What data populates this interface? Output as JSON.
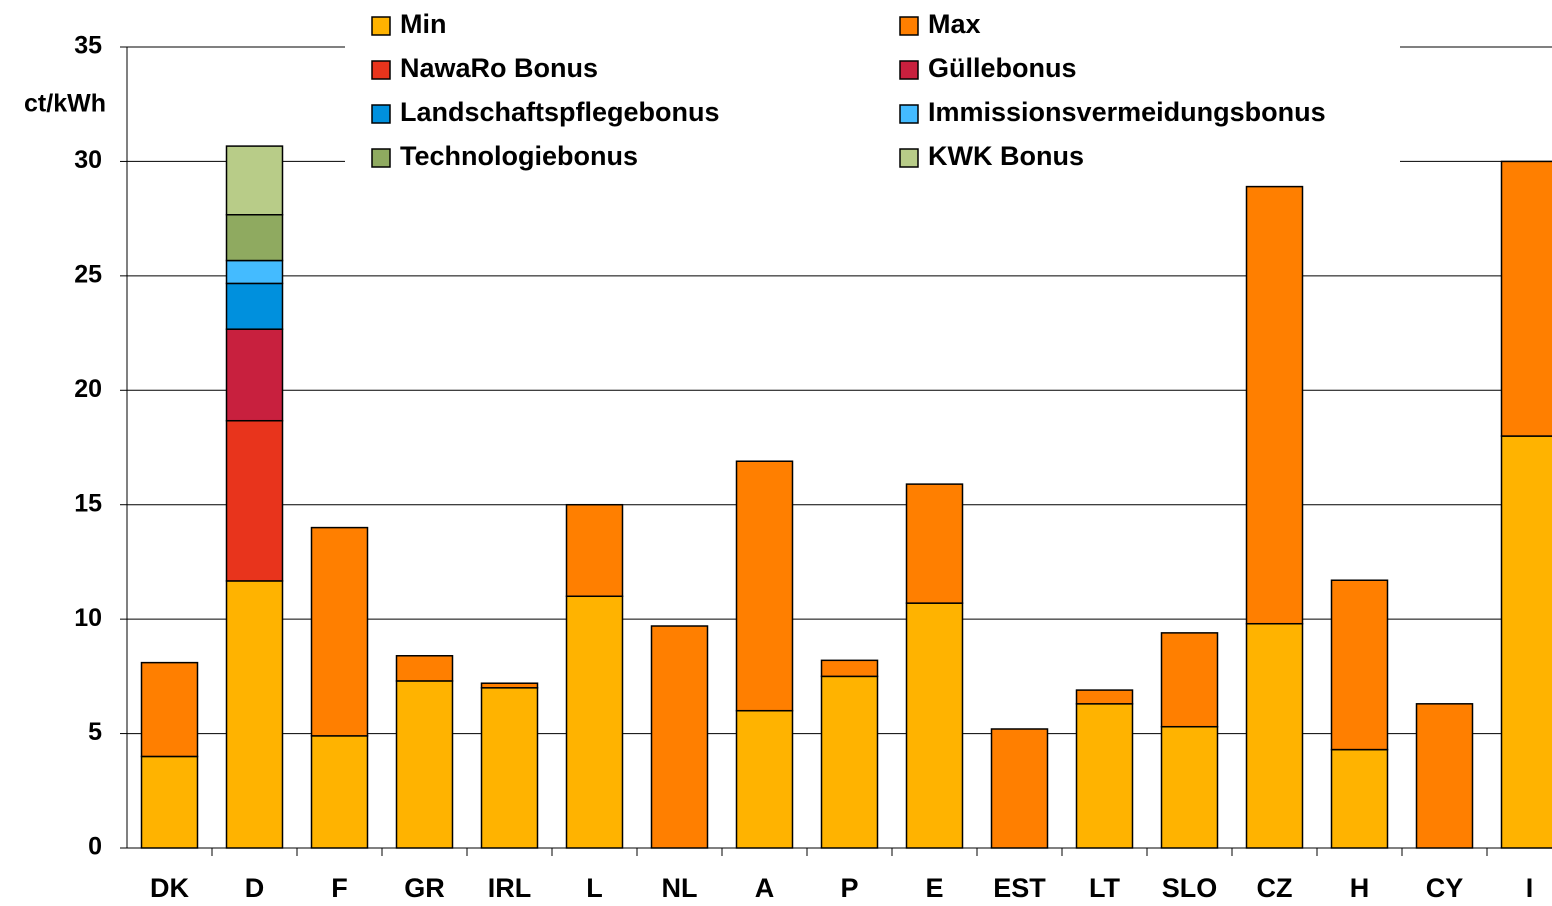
{
  "chart_data": {
    "type": "stacked-bar",
    "y_label": "ct/kWh",
    "categories": [
      "DK",
      "D",
      "F",
      "GR",
      "IRL",
      "L",
      "NL",
      "A",
      "P",
      "E",
      "EST",
      "LT",
      "SLO",
      "CZ",
      "H",
      "CY",
      "I"
    ],
    "series": [
      {
        "name": "Min",
        "color": "#FFB300",
        "values": [
          4.0,
          11.67,
          4.9,
          7.3,
          7.0,
          11.0,
          null,
          6.0,
          7.5,
          10.7,
          null,
          6.3,
          5.3,
          9.8,
          4.3,
          null,
          18.0
        ]
      },
      {
        "name": "Max",
        "color": "#FF7F00",
        "values": [
          4.1,
          null,
          9.1,
          1.1,
          0.2,
          4.0,
          9.7,
          10.9,
          0.7,
          5.2,
          5.2,
          0.6,
          4.1,
          19.1,
          7.4,
          6.3,
          12.0
        ]
      },
      {
        "name": "NawaRo Bonus",
        "color": "#E8341C",
        "values": [
          null,
          7.0,
          null,
          null,
          null,
          null,
          null,
          null,
          null,
          null,
          null,
          null,
          null,
          null,
          null,
          null,
          null
        ]
      },
      {
        "name": "Güllebonus",
        "color": "#C8203E",
        "values": [
          null,
          4.0,
          null,
          null,
          null,
          null,
          null,
          null,
          null,
          null,
          null,
          null,
          null,
          null,
          null,
          null,
          null
        ]
      },
      {
        "name": "Landschaftspflegebonus",
        "color": "#0090DD",
        "values": [
          null,
          2.0,
          null,
          null,
          null,
          null,
          null,
          null,
          null,
          null,
          null,
          null,
          null,
          null,
          null,
          null,
          null
        ]
      },
      {
        "name": "Immissionsvermeidungsbonus",
        "color": "#44BBFF",
        "values": [
          null,
          1.0,
          null,
          null,
          null,
          null,
          null,
          null,
          null,
          null,
          null,
          null,
          null,
          null,
          null,
          null,
          null
        ]
      },
      {
        "name": "Technologiebonus",
        "color": "#8FAA60",
        "values": [
          null,
          2.0,
          null,
          null,
          null,
          null,
          null,
          null,
          null,
          null,
          null,
          null,
          null,
          null,
          null,
          null,
          null
        ]
      },
      {
        "name": "KWK Bonus",
        "color": "#B8CC88",
        "values": [
          null,
          3.0,
          null,
          null,
          null,
          null,
          null,
          null,
          null,
          null,
          null,
          null,
          null,
          null,
          null,
          null,
          null
        ]
      }
    ],
    "ylim": [
      0,
      35
    ],
    "yticks": [
      0,
      5,
      10,
      15,
      20,
      25,
      30,
      35
    ],
    "grid": true,
    "legend": "top"
  }
}
